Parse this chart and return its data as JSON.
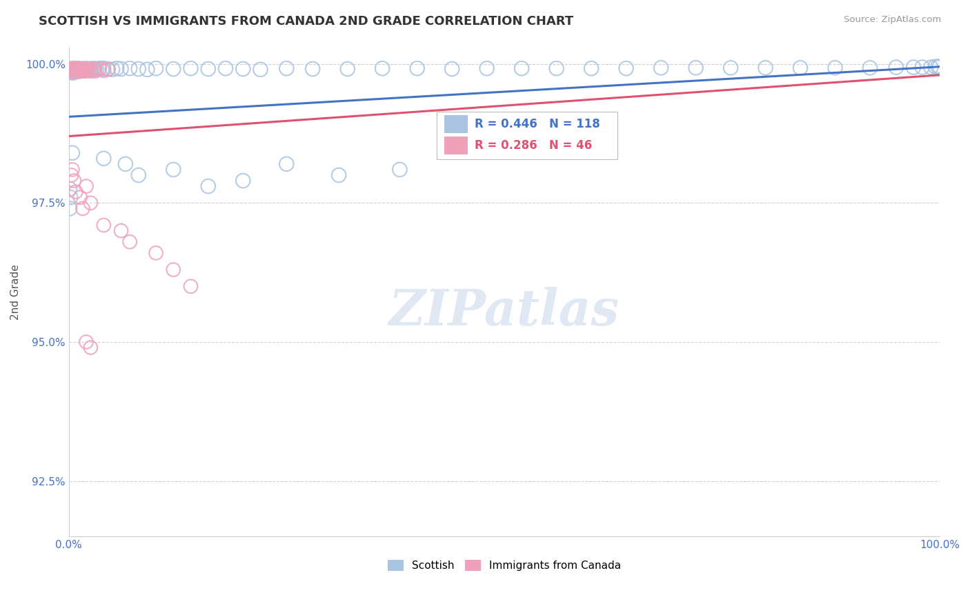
{
  "title": "SCOTTISH VS IMMIGRANTS FROM CANADA 2ND GRADE CORRELATION CHART",
  "source_text": "Source: ZipAtlas.com",
  "ylabel": "2nd Grade",
  "x_min": 0.0,
  "x_max": 1.0,
  "y_min": 0.915,
  "y_max": 1.003,
  "y_ticks": [
    0.925,
    0.95,
    0.975,
    1.0
  ],
  "y_tick_labels": [
    "92.5%",
    "95.0%",
    "97.5%",
    "100.0%"
  ],
  "x_tick_labels": [
    "0.0%",
    "100.0%"
  ],
  "legend_entries": [
    "Scottish",
    "Immigrants from Canada"
  ],
  "blue_color": "#a8c4e0",
  "pink_color": "#f0a0b8",
  "blue_line_color": "#4472c4",
  "pink_line_color": "#e05070",
  "R_blue": 0.446,
  "N_blue": 118,
  "R_pink": 0.286,
  "N_pink": 46,
  "watermark": "ZIPatlas",
  "background_color": "#ffffff",
  "grid_color": "#d0d0d0",
  "title_color": "#333333",
  "tick_label_color": "#4472c4",
  "blue_trend_x0": 0.0,
  "blue_trend_y0": 0.9905,
  "blue_trend_x1": 1.0,
  "blue_trend_y1": 0.9995,
  "pink_trend_x0": 0.0,
  "pink_trend_y0": 0.987,
  "pink_trend_x1": 1.0,
  "pink_trend_y1": 0.998,
  "blue_pts_top_x": [
    0.001,
    0.002,
    0.003,
    0.003,
    0.004,
    0.004,
    0.005,
    0.005,
    0.005,
    0.006,
    0.006,
    0.007,
    0.007,
    0.008,
    0.008,
    0.009,
    0.009,
    0.01,
    0.01,
    0.011,
    0.011,
    0.012,
    0.012,
    0.013,
    0.013,
    0.014,
    0.015,
    0.015,
    0.016,
    0.017,
    0.018,
    0.019,
    0.02,
    0.021,
    0.022,
    0.023,
    0.025,
    0.026,
    0.028,
    0.03,
    0.032,
    0.035,
    0.038,
    0.04,
    0.045,
    0.05,
    0.055,
    0.06,
    0.07,
    0.08,
    0.09,
    0.1,
    0.12,
    0.14,
    0.16,
    0.18,
    0.2,
    0.22,
    0.25,
    0.28,
    0.32,
    0.36,
    0.4,
    0.44,
    0.48,
    0.52,
    0.56,
    0.6,
    0.64,
    0.68,
    0.72,
    0.76,
    0.8,
    0.84,
    0.88,
    0.92,
    0.95,
    0.97,
    0.98,
    0.99,
    0.995,
    0.998,
    1.0
  ],
  "blue_pts_top_y": [
    0.999,
    0.9985,
    0.9992,
    0.9988,
    0.999,
    0.9986,
    0.9991,
    0.9988,
    0.9984,
    0.999,
    0.9987,
    0.9991,
    0.9988,
    0.9992,
    0.9988,
    0.9991,
    0.9987,
    0.9992,
    0.9988,
    0.9991,
    0.9987,
    0.999,
    0.9987,
    0.9991,
    0.9987,
    0.999,
    0.9991,
    0.9988,
    0.999,
    0.9991,
    0.9988,
    0.9992,
    0.999,
    0.9991,
    0.999,
    0.9991,
    0.9991,
    0.999,
    0.9992,
    0.9991,
    0.999,
    0.9992,
    0.9991,
    0.9992,
    0.9991,
    0.999,
    0.9992,
    0.9991,
    0.9992,
    0.9991,
    0.999,
    0.9992,
    0.9991,
    0.9992,
    0.9991,
    0.9992,
    0.9991,
    0.999,
    0.9992,
    0.9991,
    0.9991,
    0.9992,
    0.9992,
    0.9991,
    0.9992,
    0.9992,
    0.9992,
    0.9992,
    0.9992,
    0.9993,
    0.9993,
    0.9993,
    0.9993,
    0.9993,
    0.9993,
    0.9993,
    0.9994,
    0.9994,
    0.9994,
    0.9994,
    0.9995,
    0.9995,
    0.9995
  ],
  "blue_pts_low_x": [
    0.001,
    0.001,
    0.002,
    0.004,
    0.04,
    0.065,
    0.08,
    0.12,
    0.16,
    0.2,
    0.25,
    0.31,
    0.38
  ],
  "blue_pts_low_y": [
    0.9775,
    0.974,
    0.976,
    0.984,
    0.983,
    0.982,
    0.98,
    0.981,
    0.978,
    0.979,
    0.982,
    0.98,
    0.981
  ],
  "pink_pts_top_x": [
    0.002,
    0.003,
    0.004,
    0.004,
    0.005,
    0.005,
    0.006,
    0.007,
    0.007,
    0.008,
    0.008,
    0.009,
    0.01,
    0.011,
    0.012,
    0.013,
    0.014,
    0.015,
    0.016,
    0.017,
    0.018,
    0.019,
    0.02,
    0.022,
    0.025,
    0.028,
    0.03,
    0.035,
    0.04,
    0.045
  ],
  "pink_pts_top_y": [
    0.999,
    0.9987,
    0.9991,
    0.9988,
    0.999,
    0.9987,
    0.9991,
    0.999,
    0.9987,
    0.9992,
    0.9988,
    0.9991,
    0.9987,
    0.999,
    0.9987,
    0.9991,
    0.9988,
    0.999,
    0.9991,
    0.9988,
    0.9991,
    0.9987,
    0.999,
    0.9991,
    0.9987,
    0.999,
    0.9987,
    0.9991,
    0.9988,
    0.999
  ],
  "pink_pts_low_x": [
    0.003,
    0.004,
    0.006,
    0.008,
    0.013,
    0.016,
    0.02,
    0.025,
    0.04,
    0.07,
    0.06,
    0.1,
    0.12,
    0.14,
    0.02,
    0.025
  ],
  "pink_pts_low_y": [
    0.98,
    0.981,
    0.979,
    0.977,
    0.976,
    0.974,
    0.978,
    0.975,
    0.971,
    0.968,
    0.97,
    0.966,
    0.963,
    0.96,
    0.95,
    0.949
  ]
}
